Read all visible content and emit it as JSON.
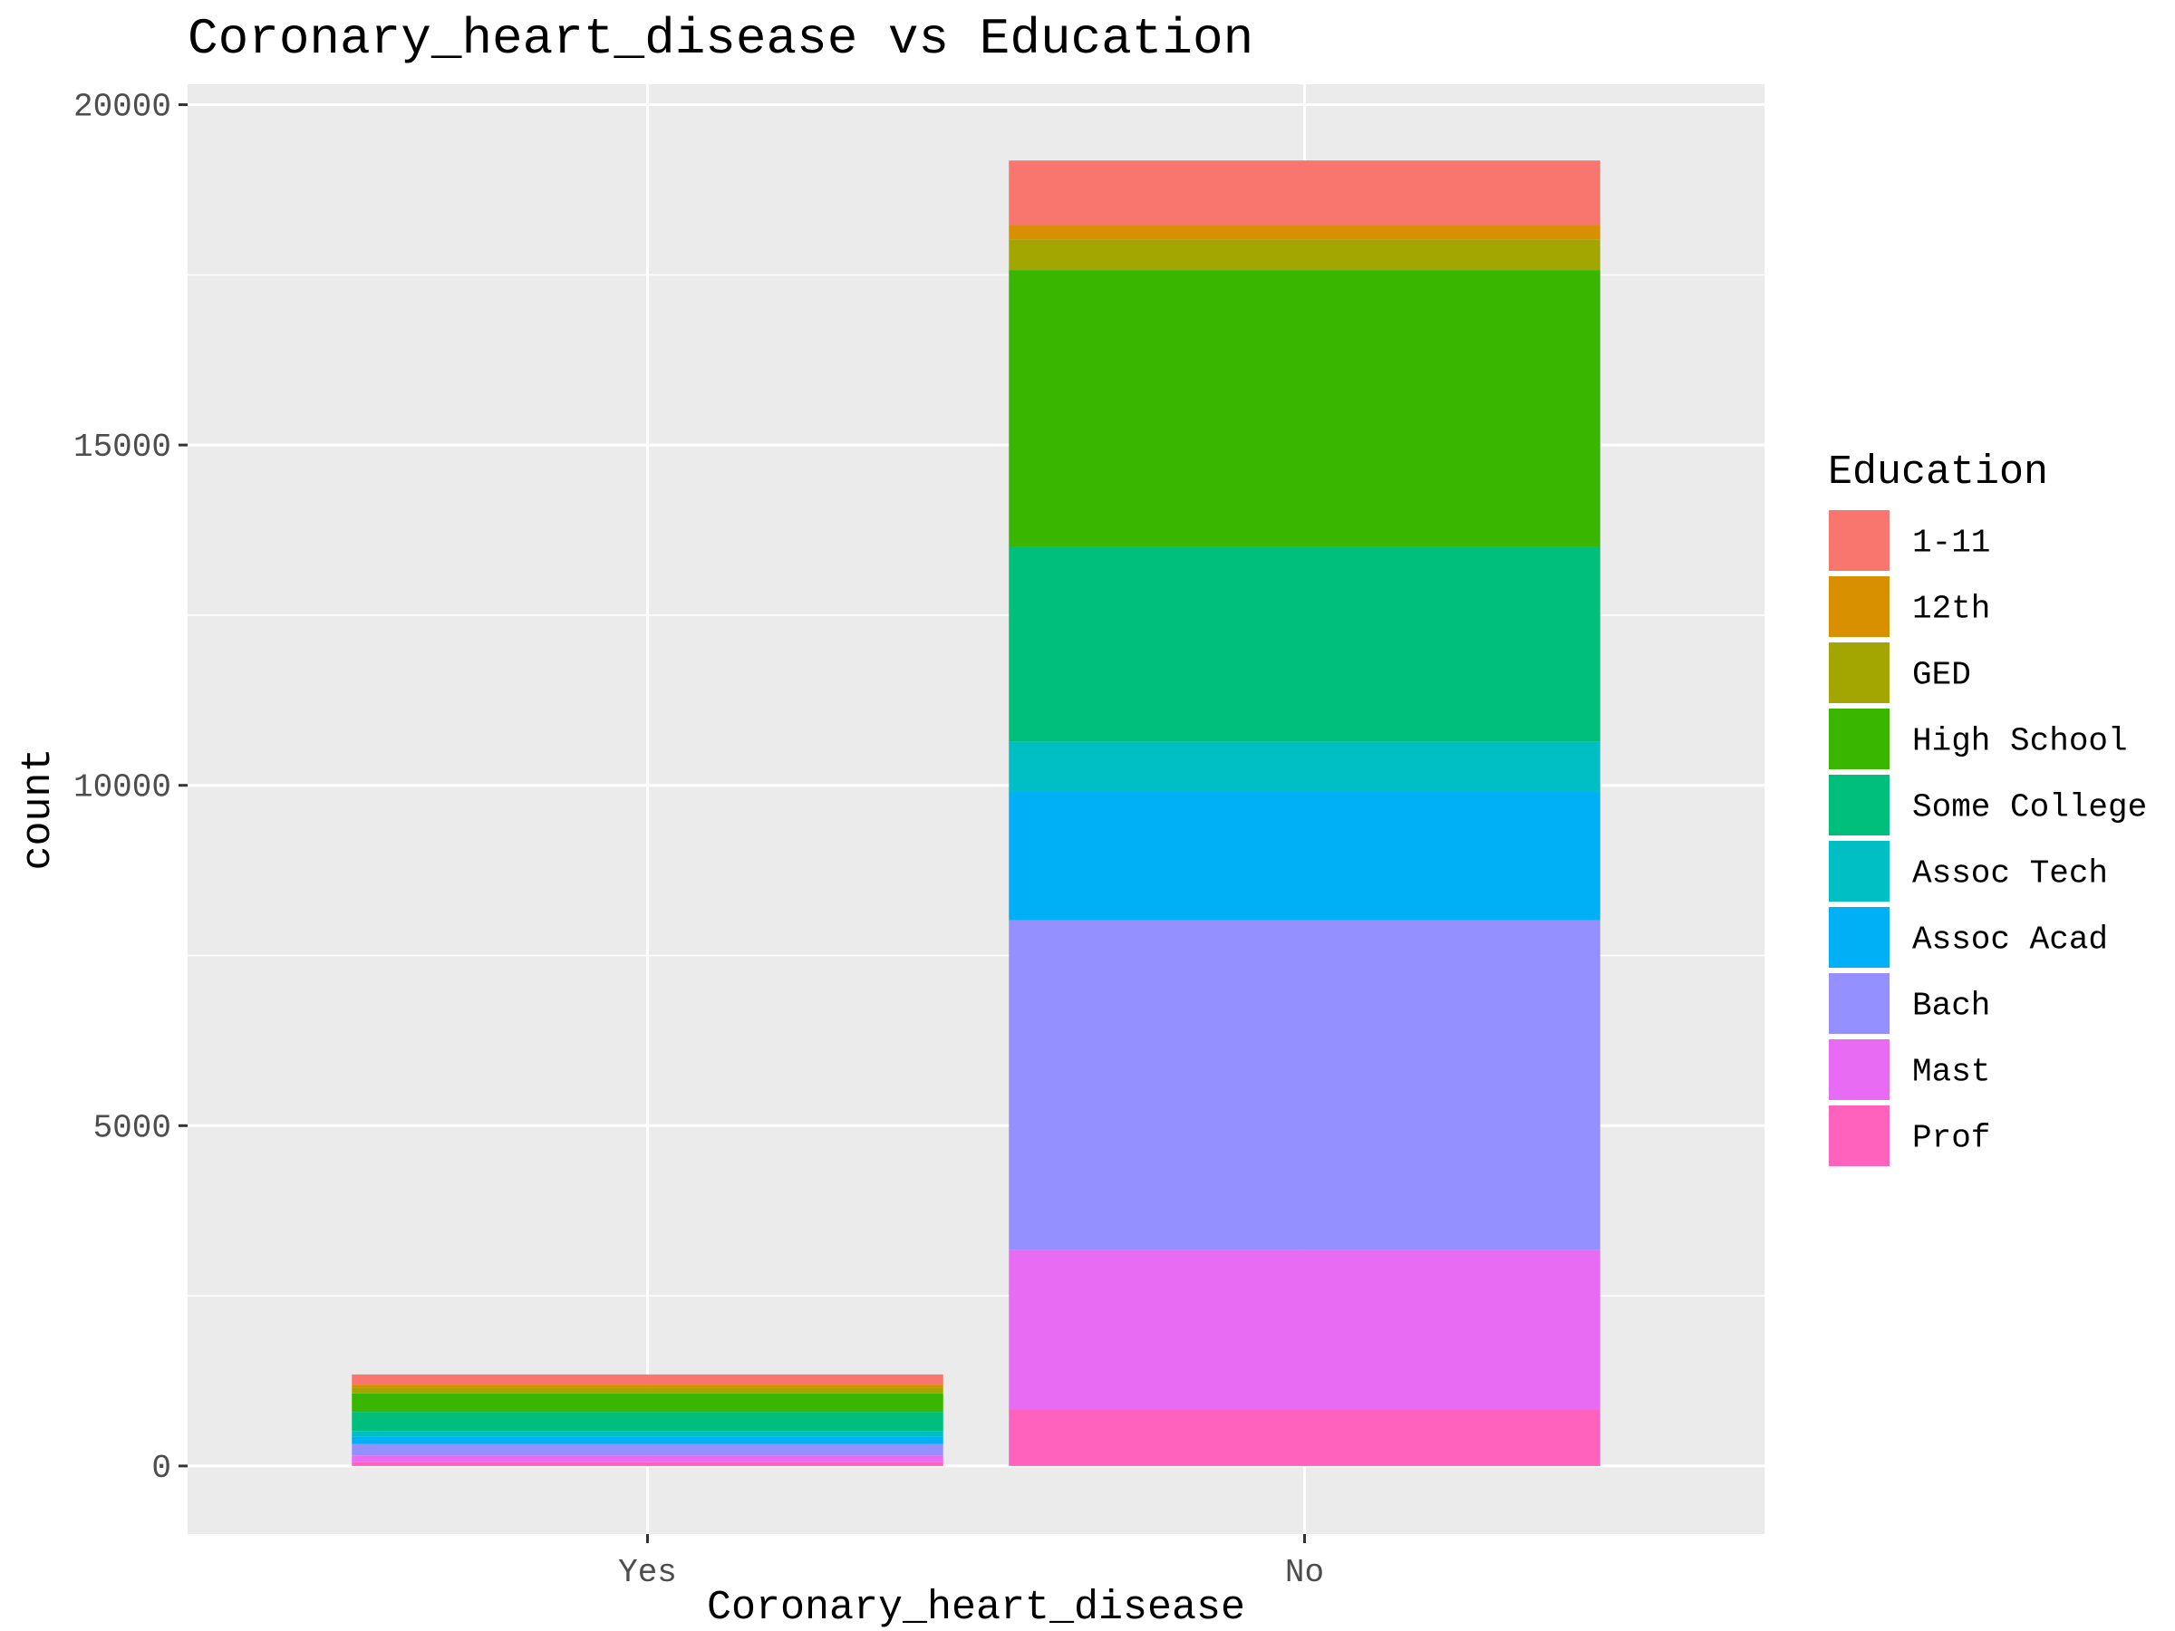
{
  "chart_data": {
    "type": "bar",
    "stacked": true,
    "title": "Coronary_heart_disease vs Education",
    "xlabel": "Coronary_heart_disease",
    "ylabel": "count",
    "categories": [
      "Yes",
      "No"
    ],
    "ylim": [
      -1000,
      20300
    ],
    "yticks": [
      0,
      5000,
      10000,
      15000,
      20000
    ],
    "ytick_labels": [
      "0",
      "5000",
      "10000",
      "15000",
      "20000"
    ],
    "grid": true,
    "legend": {
      "title": "Education",
      "placement": "right"
    },
    "series": [
      {
        "name": "1-11",
        "color": "#F8766D",
        "values": [
          150,
          950
        ]
      },
      {
        "name": "12th",
        "color": "#D89000",
        "values": [
          40,
          210
        ]
      },
      {
        "name": "GED",
        "color": "#A3A500",
        "values": [
          90,
          450
        ]
      },
      {
        "name": "High School",
        "color": "#39B600",
        "values": [
          270,
          4060
        ]
      },
      {
        "name": "Some College",
        "color": "#00BF7D",
        "values": [
          280,
          2870
        ]
      },
      {
        "name": "Assoc Tech",
        "color": "#00BFC4",
        "values": [
          80,
          730
        ]
      },
      {
        "name": "Assoc Acad",
        "color": "#00B0F6",
        "values": [
          110,
          1890
        ]
      },
      {
        "name": "Bach",
        "color": "#9590FF",
        "values": [
          170,
          4850
        ]
      },
      {
        "name": "Mast",
        "color": "#E76BF3",
        "values": [
          100,
          2340
        ]
      },
      {
        "name": "Prof",
        "color": "#FF62BC",
        "values": [
          55,
          830
        ]
      }
    ]
  }
}
